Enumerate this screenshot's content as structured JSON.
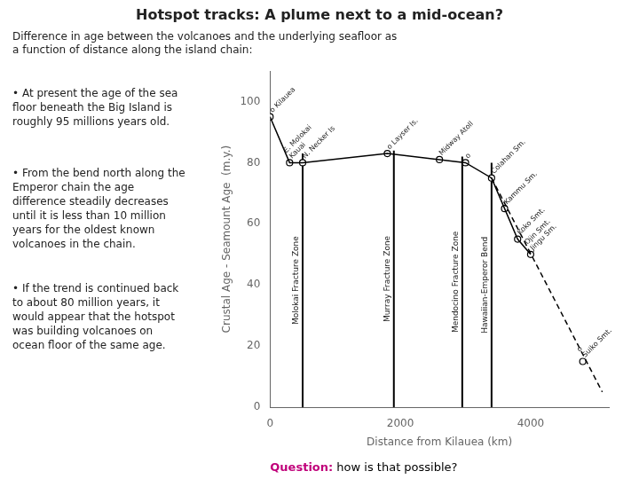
{
  "chart_data": {
    "type": "line",
    "title": "Hotspot tracks: A plume next to a mid-ocean?",
    "subtitle": "Difference in age between the volcanoes and the underlying seafloor as\na function of distance along the island chain:",
    "annotations": [
      "• At present the age of the sea\nfloor beneath the Big Island is\nroughly 95 millions years old.",
      "• From the bend north along the\nEmperor chain the age\ndifference steadily decreases\nuntil it is less than 10 million\nyears for the oldest known\nvolcanoes in the chain.",
      "• If the trend is continued back\nto about 80 million years, it\nwould appear that the hotspot\nwas building volcanoes on\nocean floor of the same age."
    ],
    "footnote": [
      {
        "text": "Question:",
        "color": "#c0007a"
      },
      {
        "text": " how is that possible?",
        "color": "#000000"
      }
    ],
    "xlabel": "Distance from Kilauea (km)",
    "ylabel": "Crustal Age - Seamount Age  (m.y.)",
    "xlim": [
      0,
      5200
    ],
    "ylim": [
      0,
      110
    ],
    "xticks": [
      0,
      2000,
      4000
    ],
    "yticks": [
      0,
      20,
      40,
      60,
      80,
      100
    ],
    "grid": false,
    "series": [
      {
        "type": "line",
        "line_style": "solid",
        "color": "#000000",
        "x": [
          0,
          300,
          500,
          1800,
          2600,
          3000,
          3400,
          3600,
          3800,
          4000
        ],
        "values": [
          95,
          80,
          80,
          83,
          81,
          80,
          75,
          65,
          55,
          50
        ]
      },
      {
        "type": "line",
        "line_style": "dashed",
        "color": "#000000",
        "x": [
          3400,
          5100
        ],
        "values": [
          75,
          5
        ]
      },
      {
        "type": "scatter",
        "marker": "circle",
        "color": "#000000",
        "x": [
          0,
          300,
          500,
          1800,
          2600,
          3000,
          3400,
          3600,
          3800,
          4000,
          4800
        ],
        "values": [
          95,
          80,
          80,
          83,
          81,
          80,
          75,
          65,
          55,
          50,
          15
        ],
        "labels": [
          "o Kilauea",
          "E. Molokai\nKauai",
          "N. Necker Is",
          "o Layser Is.",
          "Midway Atoll",
          "o",
          "Colahan Sm.",
          "Kammu Sm.",
          "Koko Smt.",
          "Ojin Smt.\nJingu Sm.",
          "o\nSuiko Smt."
        ]
      },
      {
        "type": "vline",
        "color": "#000000",
        "x": [
          500,
          1900,
          2950,
          3400
        ],
        "values": [
          83,
          84,
          82,
          80
        ],
        "labels": [
          "Molokai Fracture Zone",
          "Murray Fracture Zone",
          "Mendocino Fracture Zone",
          "Hawaiian-Emperor Bend"
        ]
      }
    ]
  }
}
